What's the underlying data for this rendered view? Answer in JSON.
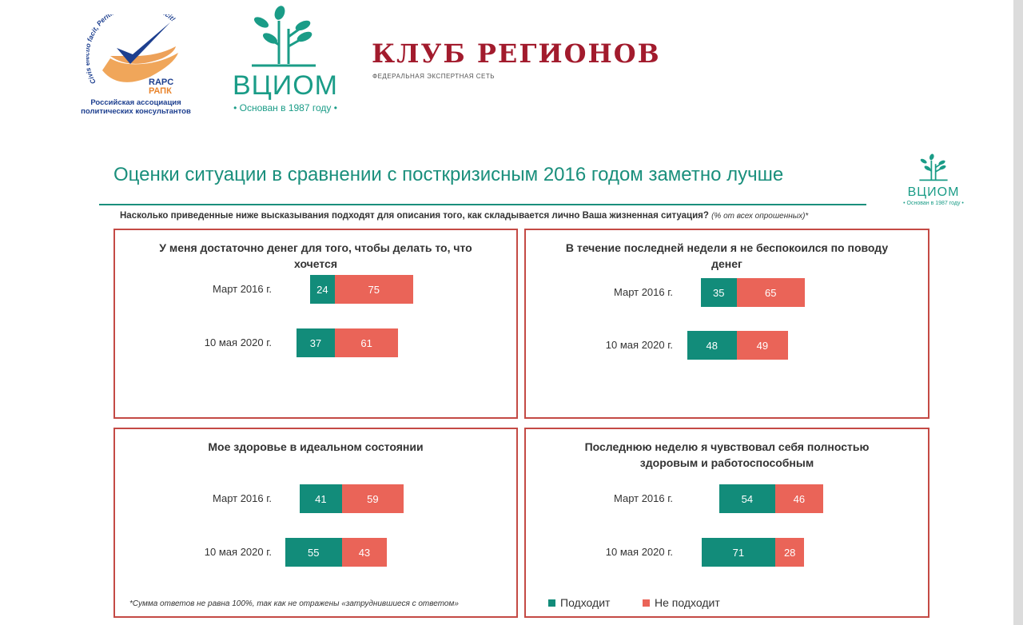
{
  "logos": {
    "rapc": {
      "motto": "Civis electio facit, Peritissimos facite vincit!",
      "abbr_latin": "RAPC",
      "abbr_cyr": "РАПК",
      "name_line1": "Российская ассоциация",
      "name_line2": "политических консультантов"
    },
    "vciom": {
      "word": "ВЦИОМ",
      "sub": "• Основан в 1987 году •"
    },
    "klub": {
      "word": "КЛУБ РЕГИОНОВ",
      "sub": "ФЕДЕРАЛЬНАЯ ЭКСПЕРТНАЯ СЕТЬ"
    },
    "vciom_small": {
      "word": "ВЦИОМ",
      "sub": "• Основан в 1987 году •"
    }
  },
  "title": "Оценки ситуации в сравнении с посткризисным 2016 годом заметно лучше",
  "question": "Насколько приведенные ниже высказывания подходят для описания того, как складывается лично Ваша жизненная ситуация?",
  "question_note": "(% от всех опрошенных)*",
  "colors": {
    "fits": "#128c7a",
    "not_fits": "#ea6458",
    "frame": "#c44a45",
    "title": "#1a8f7c"
  },
  "chart_data": [
    {
      "type": "bar",
      "title": "У меня достаточно денег для того, чтобы делать то, что хочется",
      "categories": [
        "Март 2016 г.",
        "10 мая 2020 г."
      ],
      "series": [
        {
          "name": "Подходит",
          "values": [
            24,
            37
          ]
        },
        {
          "name": "Не подходит",
          "values": [
            75,
            61
          ]
        }
      ]
    },
    {
      "type": "bar",
      "title": "В течение последней недели я не беспокоился по поводу денег",
      "categories": [
        "Март 2016 г.",
        "10 мая 2020 г."
      ],
      "series": [
        {
          "name": "Подходит",
          "values": [
            35,
            48
          ]
        },
        {
          "name": "Не подходит",
          "values": [
            65,
            49
          ]
        }
      ]
    },
    {
      "type": "bar",
      "title": "Мое здоровье в идеальном состоянии",
      "categories": [
        "Март 2016 г.",
        "10 мая 2020 г."
      ],
      "series": [
        {
          "name": "Подходит",
          "values": [
            41,
            55
          ]
        },
        {
          "name": "Не подходит",
          "values": [
            59,
            43
          ]
        }
      ]
    },
    {
      "type": "bar",
      "title": "Последнюю неделю я чувствовал себя полностью здоровым и работоспособным",
      "categories": [
        "Март 2016 г.",
        "10 мая 2020 г."
      ],
      "series": [
        {
          "name": "Подходит",
          "values": [
            54,
            71
          ]
        },
        {
          "name": "Не подходит",
          "values": [
            46,
            28
          ]
        }
      ]
    }
  ],
  "legend": {
    "fits": "Подходит",
    "not_fits": "Не подходит"
  },
  "footnote": "*Сумма ответов не равна 100%, так как не отражены «затруднившиеся с ответом»"
}
